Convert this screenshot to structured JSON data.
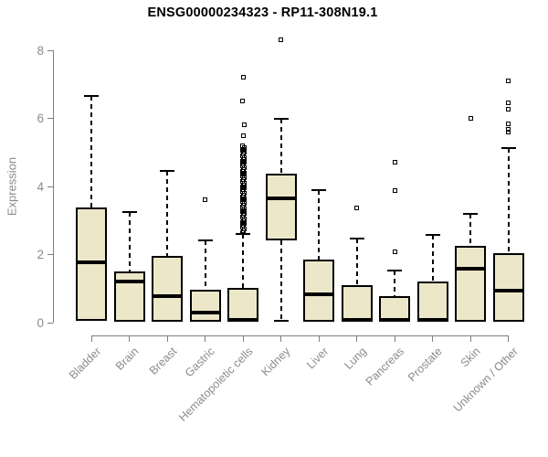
{
  "chart_data": {
    "type": "boxplot",
    "title": "ENSG00000234323 - RP11-308N19.1",
    "ylabel": "Expression",
    "xlabel": "",
    "ylim": [
      0,
      8
    ],
    "yticks": [
      0,
      2,
      4,
      6,
      8
    ],
    "grid": false,
    "legend": "none",
    "box_fill": "#ede7c9",
    "box_stroke": "#000000",
    "axis_line_color": "#7f7f7f",
    "axis_text_color": "#8b8b8b",
    "title_color": "#000000",
    "categories": [
      "Bladder",
      "Brain",
      "Breast",
      "Gastric",
      "Hematopoietic cells",
      "Kidney",
      "Liver",
      "Lung",
      "Pancreas",
      "Prostate",
      "Skin",
      "Unknown / Other"
    ],
    "series": [
      {
        "category": "Bladder",
        "whisker_low": 0.05,
        "q1": 0.05,
        "median": 1.77,
        "q3": 3.38,
        "whisker_high": 6.65,
        "outliers": []
      },
      {
        "category": "Brain",
        "whisker_low": 0.02,
        "q1": 0.02,
        "median": 1.21,
        "q3": 1.5,
        "whisker_high": 3.25,
        "outliers": []
      },
      {
        "category": "Breast",
        "whisker_low": 0.02,
        "q1": 0.02,
        "median": 0.78,
        "q3": 1.96,
        "whisker_high": 4.45,
        "outliers": []
      },
      {
        "category": "Gastric",
        "whisker_low": 0.02,
        "q1": 0.02,
        "median": 0.3,
        "q3": 0.97,
        "whisker_high": 2.42,
        "outliers": [
          3.62
        ]
      },
      {
        "category": "Hematopoietic cells",
        "whisker_low": 0.02,
        "q1": 0.02,
        "median": 0.07,
        "q3": 1.02,
        "whisker_high": 2.6,
        "outliers": [
          2.65,
          2.7,
          2.75,
          2.8,
          2.85,
          2.9,
          2.95,
          3.0,
          3.05,
          3.1,
          3.15,
          3.2,
          3.25,
          3.3,
          3.35,
          3.4,
          3.45,
          3.5,
          3.55,
          3.6,
          3.65,
          3.7,
          3.75,
          3.8,
          3.85,
          3.9,
          3.95,
          4.0,
          4.05,
          4.1,
          4.15,
          4.2,
          4.25,
          4.3,
          4.35,
          4.4,
          4.45,
          4.5,
          4.55,
          4.6,
          4.65,
          4.7,
          4.75,
          4.8,
          4.85,
          4.9,
          4.95,
          5.0,
          5.05,
          5.1,
          5.15,
          5.2,
          5.48,
          5.8,
          6.5,
          7.2
        ]
      },
      {
        "category": "Kidney",
        "whisker_low": 0.05,
        "q1": 2.42,
        "median": 3.65,
        "q3": 4.38,
        "whisker_high": 5.99,
        "outliers": [
          8.32
        ]
      },
      {
        "category": "Liver",
        "whisker_low": 0.02,
        "q1": 0.02,
        "median": 0.83,
        "q3": 1.85,
        "whisker_high": 3.89,
        "outliers": []
      },
      {
        "category": "Lung",
        "whisker_low": 0.02,
        "q1": 0.02,
        "median": 0.07,
        "q3": 1.1,
        "whisker_high": 2.47,
        "outliers": [
          3.36
        ]
      },
      {
        "category": "Pancreas",
        "whisker_low": 0.02,
        "q1": 0.02,
        "median": 0.07,
        "q3": 0.78,
        "whisker_high": 1.53,
        "outliers": [
          2.07,
          3.87,
          4.7
        ]
      },
      {
        "category": "Prostate",
        "whisker_low": 0.02,
        "q1": 0.02,
        "median": 0.07,
        "q3": 1.21,
        "whisker_high": 2.58,
        "outliers": []
      },
      {
        "category": "Skin",
        "whisker_low": 0.02,
        "q1": 0.02,
        "median": 1.58,
        "q3": 2.25,
        "whisker_high": 3.19,
        "outliers": [
          6.0
        ]
      },
      {
        "category": "Unknown / Other",
        "whisker_low": 0.02,
        "q1": 0.02,
        "median": 0.94,
        "q3": 2.04,
        "whisker_high": 5.13,
        "outliers": [
          5.6,
          5.67,
          5.83,
          6.28,
          6.45,
          7.1
        ]
      }
    ]
  }
}
